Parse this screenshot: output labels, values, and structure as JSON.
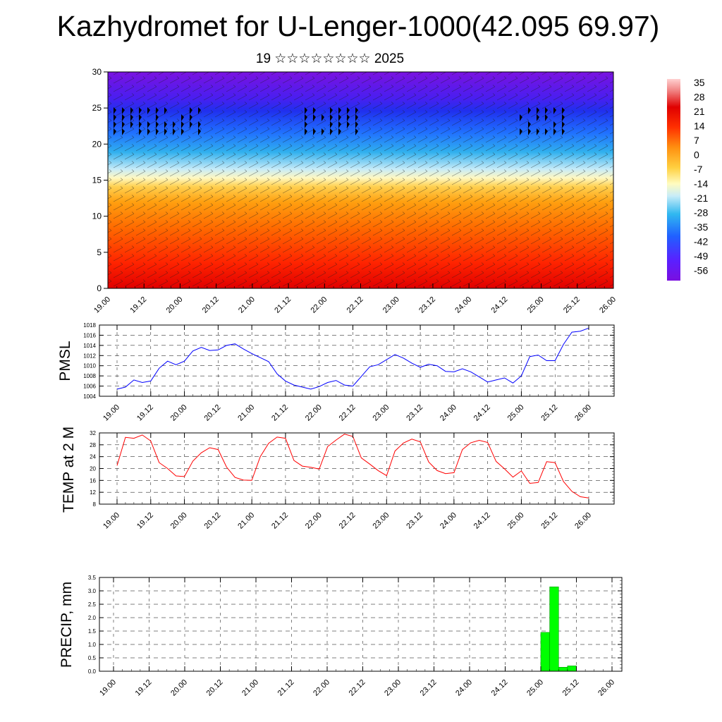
{
  "page": {
    "title": "Kazhydromet for U-Lenger-1000(42.095 69.97)",
    "subtitle": "19 ☆☆☆☆☆☆☆☆ 2025"
  },
  "colors": {
    "pmsl_line": "#0000ff",
    "temp_line": "#ff0000",
    "precip_bar": "#00ff00",
    "colorbar_stops": [
      "#7a0fe0",
      "#5a20ff",
      "#2060ff",
      "#30b8f0",
      "#c8ecf8",
      "#fffcc0",
      "#ffd040",
      "#ff9010",
      "#ff3000",
      "#e00000",
      "#f08080",
      "#ffd0d0"
    ]
  },
  "chart_data": [
    {
      "type": "heatmap",
      "id": "cross-section",
      "x_ticks": [
        "19.00",
        "19.12",
        "20.00",
        "20.12",
        "21.00",
        "21.12",
        "22.00",
        "22.12",
        "23.00",
        "23.12",
        "24.00",
        "24.12",
        "25.00",
        "25.12",
        "26.00"
      ],
      "y_ticks": [
        "0",
        "5",
        "10",
        "15",
        "20",
        "25",
        "30"
      ],
      "ylim": [
        0,
        30
      ],
      "colorbar_labels": [
        "35",
        "28",
        "21",
        "14",
        "7",
        "0",
        "-7",
        "-14",
        "-21",
        "-28",
        "-35",
        "-42",
        "-49",
        "-56"
      ],
      "overlay": "wind barbs"
    },
    {
      "type": "line",
      "id": "pmsl",
      "ylabel": "PMSL",
      "ylim": [
        1004,
        1018
      ],
      "y_ticks": [
        "1004",
        "1006",
        "1008",
        "1010",
        "1012",
        "1014",
        "1016",
        "1018"
      ],
      "x_ticks": [
        "19.00",
        "19.12",
        "20.00",
        "20.12",
        "21.00",
        "21.12",
        "22.00",
        "22.12",
        "23.00",
        "23.12",
        "24.00",
        "24.12",
        "25.00",
        "25.12",
        "26.00"
      ],
      "x_hours": [
        0,
        3,
        6,
        9,
        12,
        15,
        18,
        21,
        24,
        27,
        30,
        33,
        36,
        39,
        42,
        45,
        48,
        51,
        54,
        57,
        60,
        63,
        66,
        69,
        72,
        75,
        78,
        81,
        84,
        87,
        90,
        93,
        96,
        99,
        102,
        105,
        108,
        111,
        114,
        117,
        120,
        123,
        126,
        129,
        132,
        135,
        138,
        141,
        144,
        147,
        150,
        153,
        156,
        159,
        162,
        165,
        168
      ],
      "values": [
        1005.4,
        1005.8,
        1007.2,
        1006.7,
        1007.0,
        1009.5,
        1010.9,
        1010.2,
        1010.9,
        1012.9,
        1013.6,
        1013.0,
        1013.1,
        1014.0,
        1014.3,
        1013.3,
        1012.4,
        1011.6,
        1010.8,
        1008.4,
        1007.0,
        1006.2,
        1005.8,
        1005.4,
        1005.9,
        1006.7,
        1007.1,
        1006.2,
        1006.0,
        1007.9,
        1009.8,
        1010.2,
        1011.2,
        1012.2,
        1011.5,
        1010.5,
        1009.7,
        1010.3,
        1010.0,
        1008.9,
        1008.8,
        1009.4,
        1008.8,
        1007.8,
        1006.8,
        1007.2,
        1007.6,
        1006.6,
        1008.0,
        1011.8,
        1012.1,
        1011.0,
        1011.0,
        1014.2,
        1016.6,
        1016.8,
        1017.4
      ]
    },
    {
      "type": "line",
      "id": "temp",
      "ylabel": "TEMP at 2 M",
      "ylim": [
        8,
        32
      ],
      "y_ticks": [
        "8",
        "12",
        "16",
        "20",
        "24",
        "28",
        "32"
      ],
      "x_ticks": [
        "19.00",
        "19.12",
        "20.00",
        "20.12",
        "21.00",
        "21.12",
        "22.00",
        "22.12",
        "23.00",
        "23.12",
        "24.00",
        "24.12",
        "25.00",
        "25.12",
        "26.00"
      ],
      "x_hours": [
        0,
        3,
        6,
        9,
        12,
        15,
        18,
        21,
        24,
        27,
        30,
        33,
        36,
        39,
        42,
        45,
        48,
        51,
        54,
        57,
        60,
        63,
        66,
        69,
        72,
        75,
        78,
        81,
        84,
        87,
        90,
        93,
        96,
        99,
        102,
        105,
        108,
        111,
        114,
        117,
        120,
        123,
        126,
        129,
        132,
        135,
        138,
        141,
        144,
        147,
        150,
        153,
        156,
        159,
        162,
        165,
        168
      ],
      "values": [
        21.0,
        30.5,
        30.2,
        31.3,
        29.3,
        22.0,
        20.0,
        17.5,
        17.3,
        22.5,
        25.3,
        27.0,
        26.4,
        20.5,
        17.0,
        16.1,
        16.0,
        24.0,
        28.5,
        30.6,
        30.2,
        22.7,
        20.8,
        20.4,
        19.8,
        27.4,
        29.6,
        31.6,
        30.8,
        23.6,
        21.5,
        19.3,
        17.6,
        25.9,
        28.6,
        29.9,
        29.0,
        22.2,
        19.3,
        18.3,
        18.6,
        26.4,
        28.7,
        29.5,
        28.8,
        22.4,
        19.9,
        17.1,
        19.2,
        15.0,
        15.3,
        22.3,
        22.0,
        15.6,
        12.3,
        10.5,
        10.1
      ]
    },
    {
      "type": "bar",
      "id": "precip",
      "ylabel": "PRECIP, mm",
      "ylim": [
        0,
        3.5
      ],
      "y_ticks": [
        "0.0",
        "0.5",
        "1.0",
        "1.5",
        "2.0",
        "2.5",
        "3.0",
        "3.5"
      ],
      "x_ticks": [
        "19.00",
        "19.12",
        "20.00",
        "20.12",
        "21.00",
        "21.12",
        "22.00",
        "22.12",
        "23.00",
        "23.12",
        "24.00",
        "24.12",
        "25.00",
        "25.12",
        "26.00"
      ],
      "bars": [
        {
          "start_hour": 144,
          "end_hour": 147,
          "value": 1.45
        },
        {
          "start_hour": 147,
          "end_hour": 150,
          "value": 3.15
        },
        {
          "start_hour": 150,
          "end_hour": 153,
          "value": 0.15
        },
        {
          "start_hour": 153,
          "end_hour": 156,
          "value": 0.2
        }
      ]
    }
  ]
}
